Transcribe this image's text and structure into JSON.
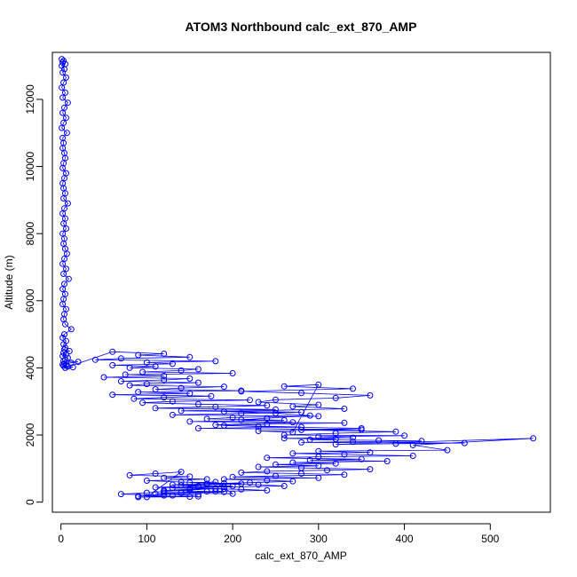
{
  "chart_data": {
    "type": "line",
    "title": "ATOM3 Northbound calc_ext_870_AMP",
    "xlabel": "calc_ext_870_AMP",
    "ylabel": "Altitude (m)",
    "xlim": [
      -10,
      570
    ],
    "ylim": [
      -300,
      13400
    ],
    "x_ticks": [
      0,
      100,
      200,
      300,
      400,
      500
    ],
    "y_ticks": [
      0,
      2000,
      4000,
      6000,
      8000,
      10000,
      12000
    ],
    "x_tick_labels": [
      "0",
      "100",
      "200",
      "300",
      "400",
      "500"
    ],
    "y_tick_labels": [
      "0",
      "2000",
      "4000",
      "6000",
      "8000",
      "10000",
      "12000"
    ],
    "grid": false,
    "legend": "none",
    "series_color": "#0000ff",
    "markers": "open-circle",
    "series": [
      {
        "x": [
          1,
          3,
          2,
          5,
          1,
          4,
          2,
          6,
          3,
          1,
          5,
          2,
          8,
          4,
          2,
          6,
          3,
          1,
          7,
          2,
          3,
          2,
          4,
          5,
          3,
          2,
          6,
          4,
          2,
          3,
          5,
          3,
          8,
          4,
          2,
          5,
          3,
          6,
          2,
          4,
          3,
          5,
          7,
          4,
          2,
          6,
          3,
          9,
          4,
          2,
          5,
          3,
          2,
          6,
          4,
          3,
          5,
          12,
          4,
          2,
          6,
          3,
          5,
          4,
          10,
          3,
          6,
          2,
          8,
          5,
          3,
          20,
          12,
          4,
          2,
          6,
          3,
          8,
          14,
          5,
          60,
          120,
          90,
          150,
          70,
          40,
          180,
          100,
          130,
          60,
          110,
          80,
          160,
          140,
          95,
          200,
          75,
          120,
          50,
          150,
          120,
          70,
          160,
          100,
          80,
          190,
          140,
          110,
          210,
          90,
          150,
          60,
          175,
          120,
          85,
          220,
          130,
          95,
          160,
          240,
          180,
          110,
          250,
          140,
          280,
          210,
          130,
          300,
          200,
          170,
          260,
          150,
          330,
          240,
          190,
          280,
          160,
          350,
          230,
          270,
          300,
          260,
          340,
          210,
          280,
          360,
          320,
          250,
          230,
          300,
          270,
          330,
          190,
          250,
          290,
          240,
          210,
          270,
          180,
          230,
          350,
          280,
          390,
          320,
          260,
          400,
          300,
          340,
          260,
          320,
          290,
          370,
          420,
          340,
          280,
          470,
          390,
          320,
          550,
          410,
          450,
          300,
          360,
          270,
          330,
          410,
          300,
          240,
          350,
          290,
          380,
          270,
          320,
          250,
          300,
          230,
          280,
          360,
          310,
          240,
          210,
          280,
          330,
          250,
          200,
          300,
          190,
          240,
          270,
          220,
          170,
          230,
          260,
          190,
          150,
          210,
          240,
          180,
          120,
          200,
          180,
          150,
          210,
          170,
          140,
          200,
          160,
          130,
          190,
          150,
          120,
          170,
          190,
          140,
          110,
          160,
          120,
          90,
          150,
          100,
          140,
          110,
          80,
          150,
          120,
          170,
          100,
          140,
          190,
          130,
          160,
          110,
          180,
          150,
          120,
          100,
          70,
          130,
          160,
          90
        ],
        "y": [
          13200,
          13150,
          13100,
          13050,
          13000,
          12900,
          12800,
          12650,
          12500,
          12350,
          12200,
          12050,
          11900,
          11750,
          11600,
          11450,
          11300,
          11150,
          11000,
          10850,
          10700,
          10550,
          10400,
          10250,
          10100,
          9950,
          9800,
          9650,
          9500,
          9350,
          9200,
          9050,
          8900,
          8750,
          8600,
          8450,
          8300,
          8150,
          8000,
          7850,
          7700,
          7550,
          7400,
          7250,
          7100,
          6950,
          6800,
          6650,
          6500,
          6350,
          6200,
          6050,
          5900,
          5750,
          5600,
          5450,
          5300,
          5150,
          5000,
          4900,
          4800,
          4700,
          4600,
          4550,
          4500,
          4450,
          4400,
          4350,
          4300,
          4250,
          4200,
          4180,
          4150,
          4120,
          4100,
          4080,
          4060,
          4040,
          4020,
          4000,
          4480,
          4420,
          4380,
          4320,
          4280,
          4240,
          4200,
          4160,
          4120,
          4080,
          4040,
          4000,
          3960,
          3920,
          3880,
          3840,
          3800,
          3760,
          3720,
          3680,
          3640,
          3600,
          3560,
          3520,
          3480,
          3440,
          3400,
          3360,
          3320,
          3280,
          3240,
          3200,
          3160,
          3120,
          3080,
          3040,
          3000,
          2960,
          2920,
          2880,
          2840,
          2800,
          2760,
          2720,
          2680,
          2640,
          2600,
          2560,
          2520,
          2480,
          2440,
          2400,
          2360,
          2320,
          2280,
          2240,
          2200,
          2160,
          2120,
          2080,
          3500,
          3450,
          3380,
          3300,
          3250,
          3180,
          3100,
          3050,
          2980,
          2900,
          2850,
          2780,
          2700,
          2650,
          2580,
          2500,
          2450,
          2380,
          2300,
          2250,
          2200,
          2150,
          2100,
          2050,
          2000,
          1980,
          1950,
          1920,
          1900,
          1880,
          1860,
          1840,
          1820,
          1800,
          1780,
          1760,
          1740,
          1720,
          1900,
          1700,
          1550,
          1520,
          1480,
          1450,
          1420,
          1380,
          1350,
          1320,
          1280,
          1250,
          1220,
          1180,
          1150,
          1120,
          1080,
          1050,
          1020,
          980,
          950,
          920,
          880,
          850,
          820,
          780,
          750,
          720,
          680,
          650,
          620,
          580,
          550,
          520,
          480,
          450,
          420,
          380,
          350,
          320,
          280,
          250,
          600,
          580,
          550,
          520,
          500,
          480,
          450,
          420,
          400,
          380,
          350,
          320,
          300,
          280,
          250,
          230,
          200,
          180,
          160,
          150,
          900,
          850,
          800,
          760,
          720,
          680,
          640,
          600,
          560,
          520,
          480,
          440,
          400,
          360,
          320,
          280,
          240,
          200,
          170,
          150
        ]
      }
    ]
  }
}
